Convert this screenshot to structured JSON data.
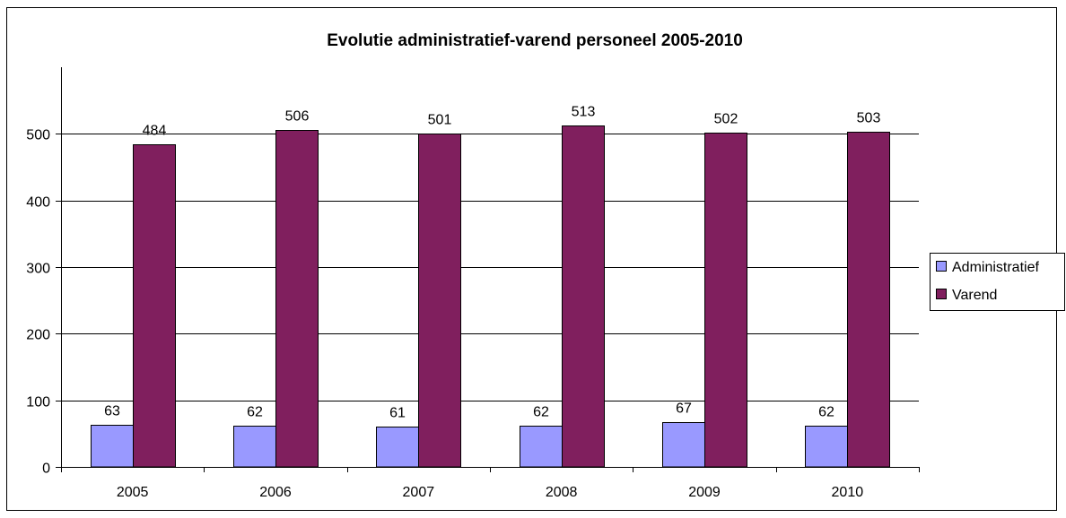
{
  "chart_data": {
    "type": "bar",
    "title": "Evolutie administratief-varend personeel 2005-2010",
    "xlabel": "",
    "ylabel": "",
    "categories": [
      "2005",
      "2006",
      "2007",
      "2008",
      "2009",
      "2010"
    ],
    "series": [
      {
        "name": "Administratief",
        "color": "#9999FF",
        "values": [
          63,
          62,
          61,
          62,
          67,
          62
        ]
      },
      {
        "name": "Varend",
        "color": "#801F5E",
        "values": [
          484,
          506,
          501,
          513,
          502,
          503
        ]
      }
    ],
    "ylim": [
      0,
      600
    ],
    "yticks": [
      0,
      100,
      200,
      300,
      400,
      500
    ],
    "grid": true,
    "legend": "right",
    "data_labels": true
  }
}
